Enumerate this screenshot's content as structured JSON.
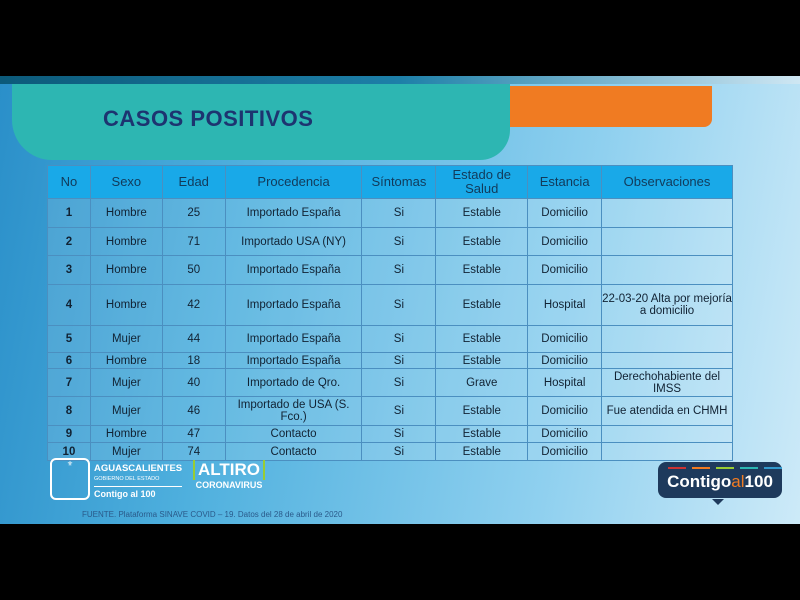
{
  "title": "CASOS POSITIVOS",
  "table": {
    "headers": [
      "No",
      "Sexo",
      "Edad",
      "Procedencia",
      "Síntomas",
      "Estado de Salud",
      "Estancia",
      "Observaciones"
    ],
    "rows": [
      [
        "1",
        "Hombre",
        "25",
        "Importado España",
        "Si",
        "Estable",
        "Domicilio",
        ""
      ],
      [
        "2",
        "Hombre",
        "71",
        "Importado USA (NY)",
        "Si",
        "Estable",
        "Domicilio",
        ""
      ],
      [
        "3",
        "Hombre",
        "50",
        "Importado España",
        "Si",
        "Estable",
        "Domicilio",
        ""
      ],
      [
        "4",
        "Hombre",
        "42",
        "Importado España",
        "Si",
        "Estable",
        "Hospital",
        "22-03-20 Alta por mejoría a domicilio"
      ],
      [
        "5",
        "Mujer",
        "44",
        "Importado España",
        "Si",
        "Estable",
        "Domicilio",
        ""
      ],
      [
        "6",
        "Hombre",
        "18",
        "Importado España",
        "Si",
        "Estable",
        "Domicilio",
        ""
      ],
      [
        "7",
        "Mujer",
        "40",
        "Importado de Qro.",
        "Si",
        "Grave",
        "Hospital",
        "Derechohabiente del IMSS"
      ],
      [
        "8",
        "Mujer",
        "46",
        "Importado de USA (S. Fco.)",
        "Si",
        "Estable",
        "Domicilio",
        "Fue atendida en CHMH"
      ],
      [
        "9",
        "Hombre",
        "47",
        "Contacto",
        "Si",
        "Estable",
        "Domicilio",
        ""
      ],
      [
        "10",
        "Mujer",
        "74",
        "Contacto",
        "Si",
        "Estable",
        "Domicilio",
        ""
      ]
    ]
  },
  "footer": {
    "source": "FUENTE. Plataforma SINAVE COVID – 19. Datos del 28 de abril de 2020"
  },
  "logos": {
    "ags_name": "AGUASCALIENTES",
    "ags_sub": "GOBIERNO DEL ESTADO",
    "ags_slogan": "Contigo al 100",
    "altiro": "ALTIRO",
    "altiro_sub": "CORONAVIRUS",
    "contigo_a": "Contigo",
    "contigo_b": "al",
    "contigo_c": "100"
  },
  "colors": {
    "teal": "#2db6b2",
    "orange": "#f07b22",
    "navy": "#1d3470",
    "header": "#19a9e8"
  }
}
